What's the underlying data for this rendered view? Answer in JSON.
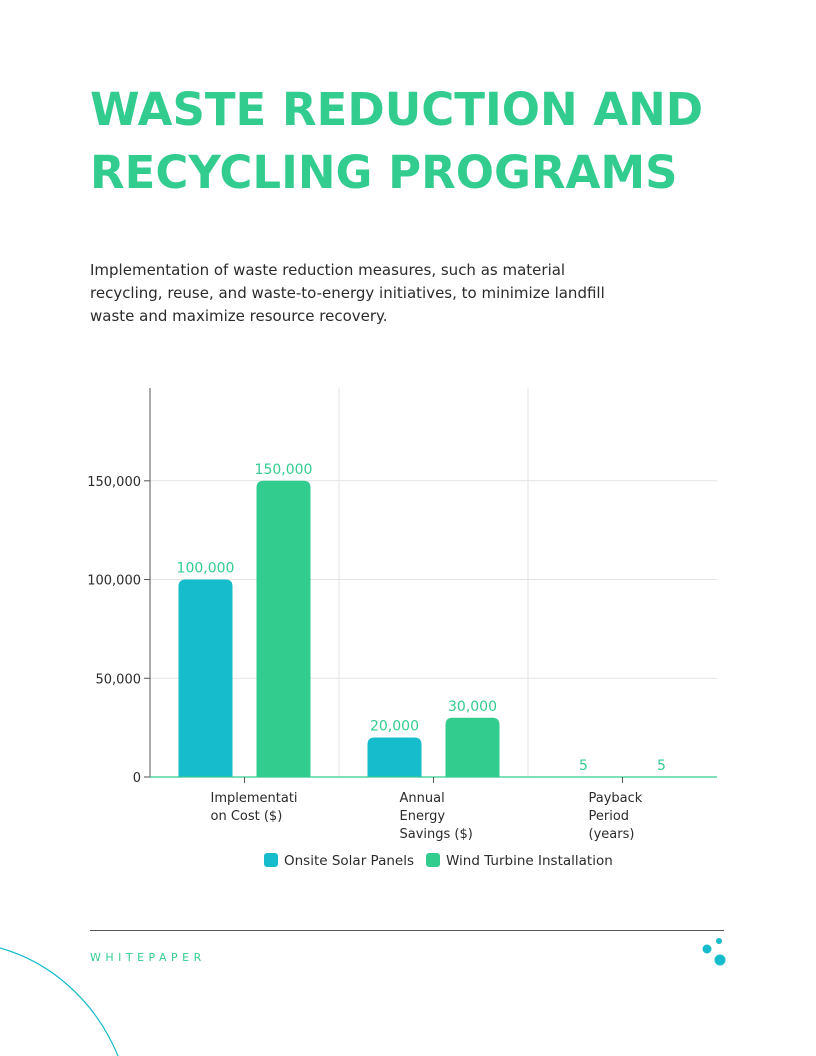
{
  "page": {
    "title_lines": [
      "WASTE REDUCTION AND",
      "RECYCLING PROGRAMS"
    ],
    "description": "Implementation of waste reduction measures, such as material recycling, reuse, and waste-to-energy initiatives, to minimize landfill waste and maximize resource recovery.",
    "footer_label": "WHITEPAPER"
  },
  "colors": {
    "accent_green": "#33cc8f",
    "accent_teal": "#17bccc"
  },
  "chart_data": {
    "type": "bar",
    "categories": [
      [
        "Implementati",
        "on Cost ($)"
      ],
      [
        "Annual",
        "Energy",
        "Savings ($)"
      ],
      [
        "Payback",
        "Period",
        "(years)"
      ]
    ],
    "series": [
      {
        "name": "Onsite Solar Panels",
        "values": [
          100000,
          20000,
          5
        ],
        "labels": [
          "100,000",
          "20,000",
          "5"
        ],
        "color": "#17bccc"
      },
      {
        "name": "Wind Turbine Installation",
        "values": [
          150000,
          30000,
          5
        ],
        "labels": [
          "150,000",
          "30,000",
          "5"
        ],
        "color": "#33cc8f"
      }
    ],
    "ylim": [
      0,
      197000
    ],
    "yticks": [
      {
        "value": 0,
        "label": "0"
      },
      {
        "value": 50000,
        "label": "50,000"
      },
      {
        "value": 100000,
        "label": "100,000"
      },
      {
        "value": 150000,
        "label": "150,000"
      }
    ],
    "grid": true,
    "legend_position": "bottom"
  }
}
